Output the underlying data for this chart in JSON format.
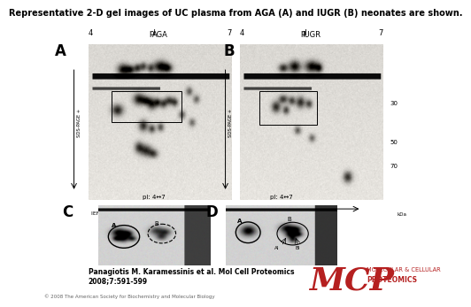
{
  "title": "Representative 2-D gel images of UC plasma from AGA (A) and IUGR (B) neonates are shown.",
  "title_fontsize": 7.0,
  "panel_A_label": "A",
  "panel_B_label": "B",
  "panel_C_label": "C",
  "panel_D_label": "D",
  "panel_A_title": "AGA",
  "panel_B_title": "IUGR",
  "xlabel": "pI",
  "x_left": "4",
  "x_right": "7",
  "ylabel": "SDS-PAGE",
  "ief_label": "IEF",
  "kda_labels": [
    "70",
    "50",
    "30"
  ],
  "citation_line1": "Panagiotis M. Karamessinis et al. Mol Cell Proteomics",
  "citation_line2": "2008;7:591-599",
  "copyright": "© 2008 The American Society for Biochemistry and Molecular Biology",
  "mcp_text": "MCP",
  "mcp_sub1": "MOLECULAR & CELLULAR",
  "mcp_sub2": "PROTEOMICS",
  "bg_color": "#ffffff",
  "gel_color_light": [
    0.88,
    0.87,
    0.85
  ],
  "gel_color_dark": [
    0.7,
    0.69,
    0.67
  ],
  "spot_color": "#111111",
  "mcp_red": "#b52020",
  "panel_label_fontsize": 12,
  "small_label_fontsize": 6,
  "pi_label_fontsize": 6,
  "annot_fontsize": 3.5,
  "pi_arrow_label": "pI: 4↔7"
}
